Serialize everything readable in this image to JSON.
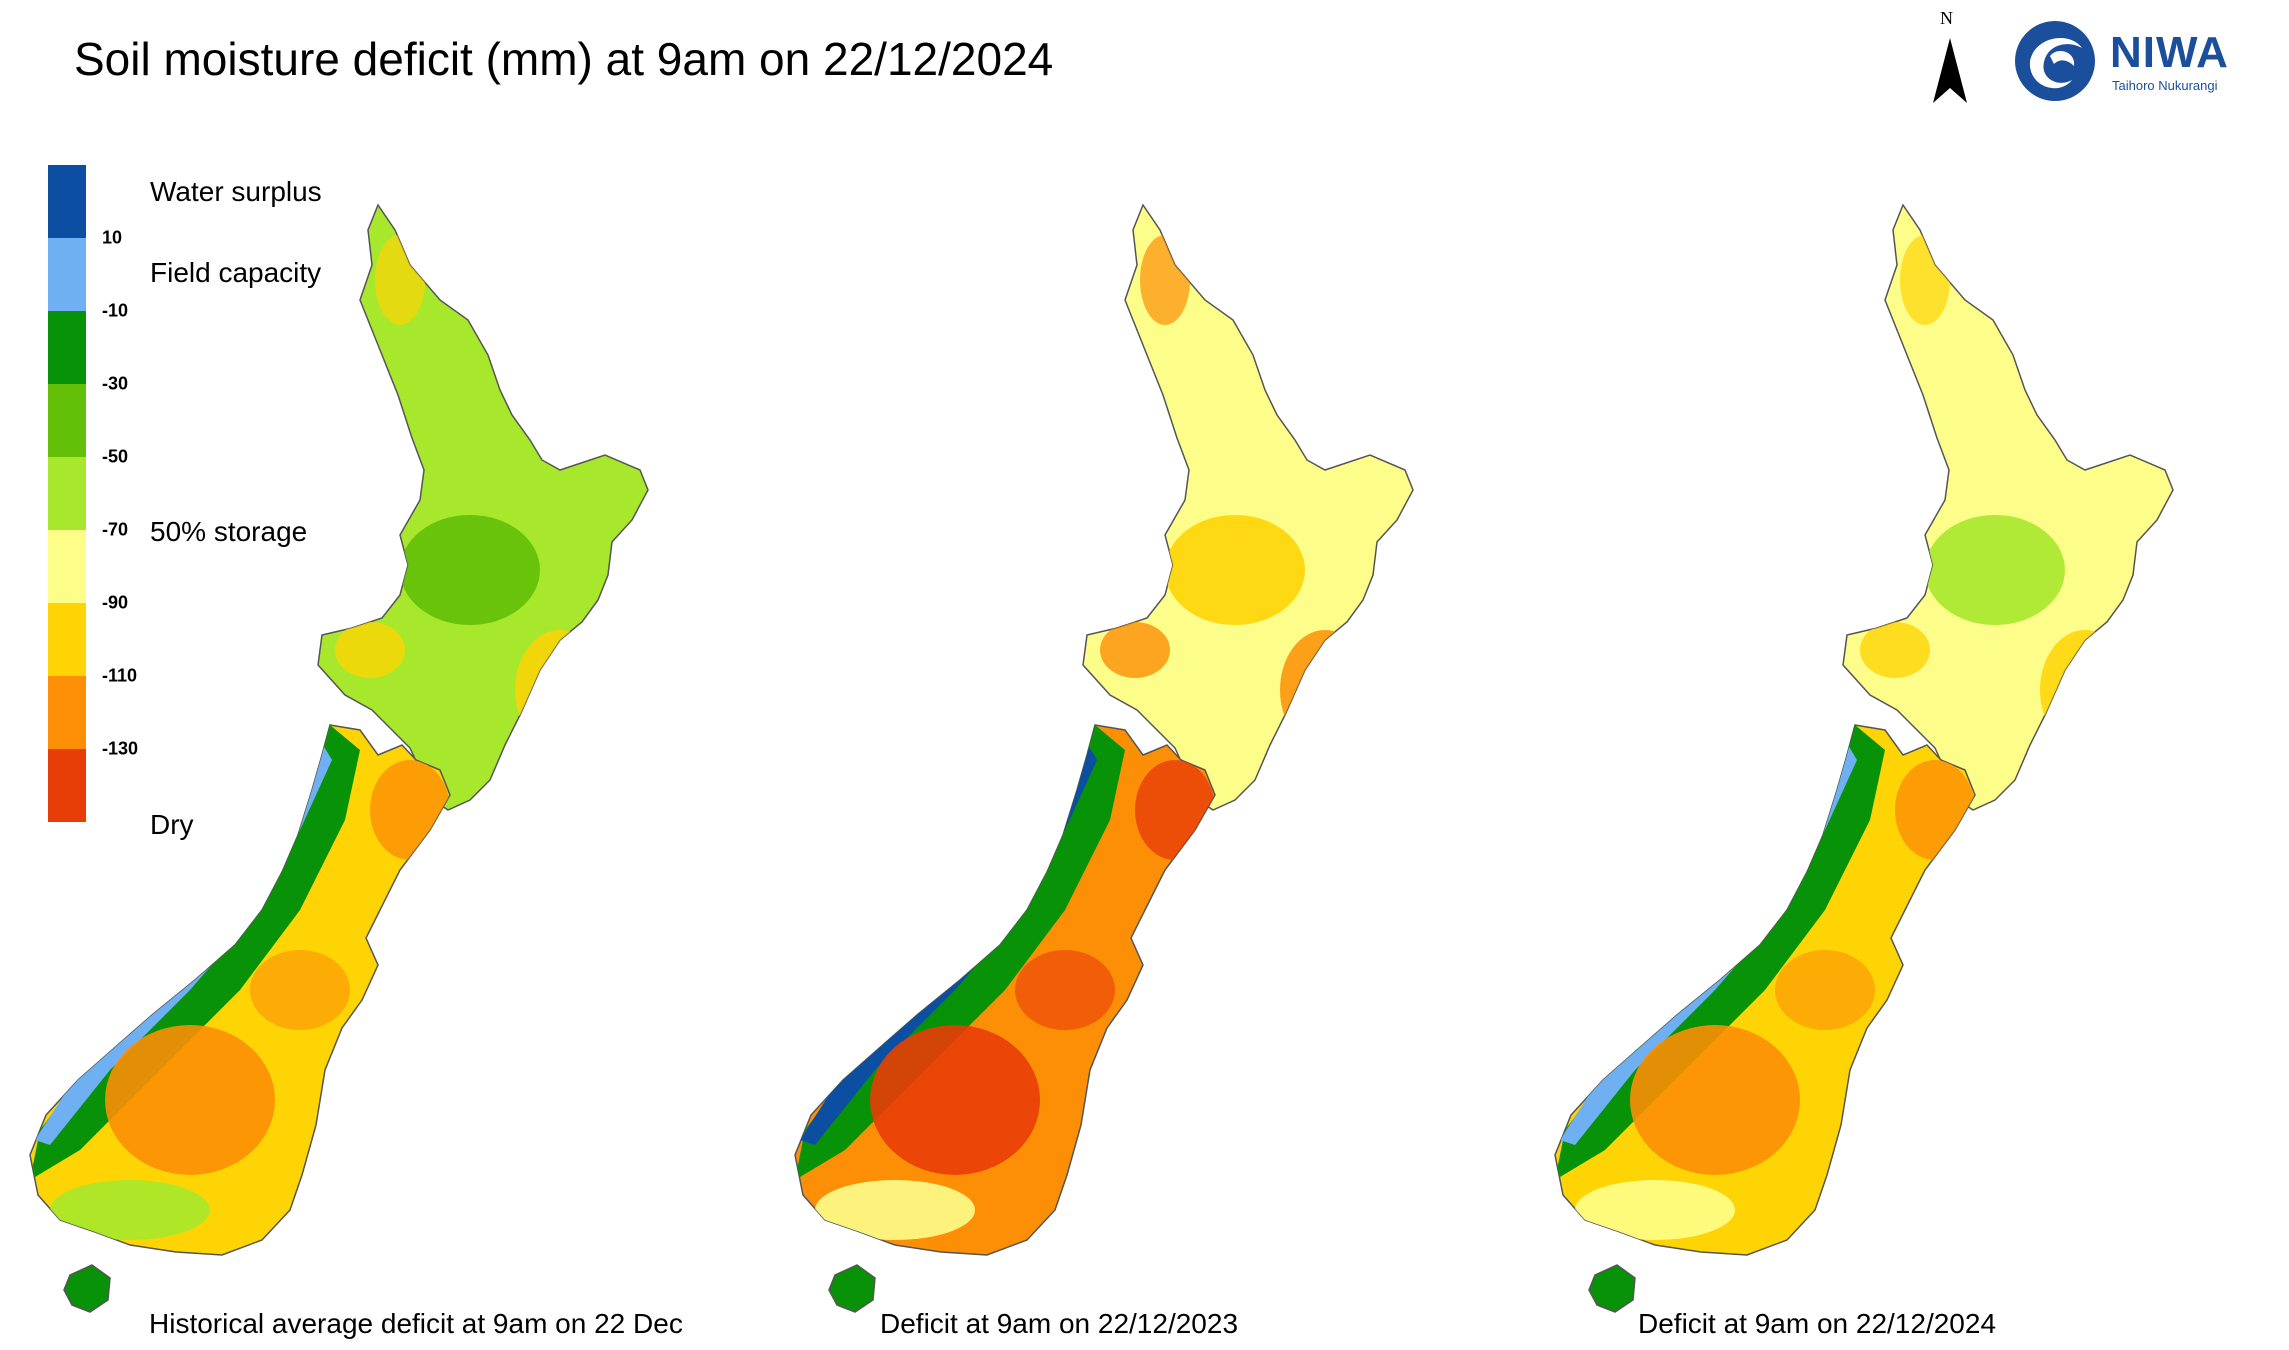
{
  "title": "Soil moisture deficit (mm) at  9am on 22/12/2024",
  "north_label": "N",
  "logo": {
    "name": "NIWA",
    "tagline": "Taihoro Nukurangi",
    "color": "#1b4f9c"
  },
  "legend": {
    "bins": [
      {
        "color": "#0b4ea2"
      },
      {
        "color": "#6fb0f2"
      },
      {
        "color": "#079207"
      },
      {
        "color": "#64bf08"
      },
      {
        "color": "#a7e82c"
      },
      {
        "color": "#fdfe8a"
      },
      {
        "color": "#fed405"
      },
      {
        "color": "#fc8f05"
      },
      {
        "color": "#e93d08"
      }
    ],
    "ticks": [
      "10",
      "-10",
      "-30",
      "-50",
      "-70",
      "-90",
      "-110",
      "-130"
    ],
    "labels": {
      "surplus": "Water surplus",
      "field_capacity": "Field capacity",
      "half_storage": "50% storage",
      "dry": "Dry"
    }
  },
  "maps": [
    {
      "caption": "Historical average deficit at  9am on 22 Dec",
      "palette": {
        "north": "#a7e82c",
        "north_core": "#64bf08",
        "south": "#fed405",
        "south_core": "#fc8f05",
        "west": "#079207",
        "coast": "#6fb0f2"
      }
    },
    {
      "caption": "Deficit at  9am on 22/12/2023",
      "palette": {
        "north": "#fdfe8a",
        "north_core": "#fed405",
        "south": "#fc8f05",
        "south_core": "#e93d08",
        "west": "#079207",
        "coast": "#0b4ea2"
      }
    },
    {
      "caption": "Deficit at  9am on 22/12/2024",
      "palette": {
        "north": "#fdfe8a",
        "north_core": "#a7e82c",
        "south": "#fed405",
        "south_core": "#fc8f05",
        "west": "#079207",
        "coast": "#6fb0f2"
      }
    }
  ]
}
